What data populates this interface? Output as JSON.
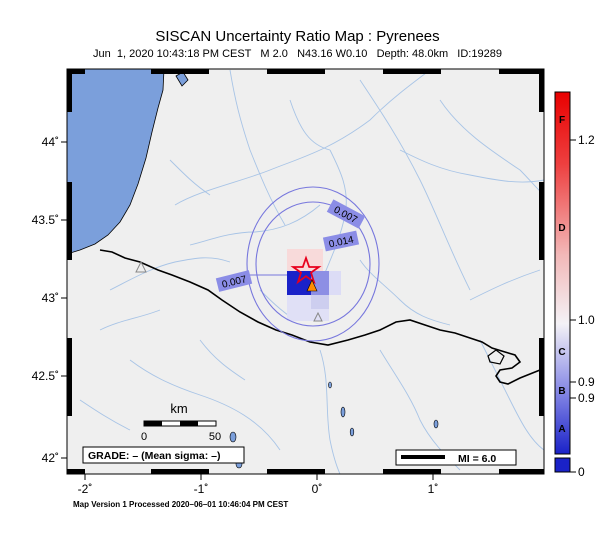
{
  "title": "SISCAN Uncertainty Ratio Map : Pyrenees",
  "subtitle": {
    "datetime": "Jun  1, 2020 10:43:18 PM CEST",
    "magnitude": "M 2.0",
    "location": "N43.16 W0.10",
    "depth": "Depth: 48.0km",
    "id": "ID:19289"
  },
  "latitude_labels": [
    "44˚",
    "43.5˚",
    "43˚",
    "42.5˚",
    "42˚"
  ],
  "longitude_labels": [
    "-2˚",
    "-1˚",
    "0˚",
    "1˚"
  ],
  "contour_labels": [
    "0.007",
    "0.014",
    "0.007"
  ],
  "scale_bar": {
    "unit": "km",
    "start": "0",
    "end": "50"
  },
  "grade_box": "GRADE: – (Mean sigma: –)",
  "mi_legend": "MI = 6.0",
  "colorbar": {
    "grades": [
      "F",
      "D",
      "C",
      "B",
      "A"
    ],
    "values": [
      "1.2",
      "1.0",
      "0.9",
      "0.9",
      "0"
    ]
  },
  "footer": "Map Version 1 Processed 2020–06–01 10:46:04 PM CEST",
  "colors": {
    "sea": "#7b9fdb",
    "land": "#efefef",
    "river": "#a8c4e6",
    "contour": "#7777dd",
    "epicenter_star": "#e8001c",
    "station": "#ff8c00"
  }
}
